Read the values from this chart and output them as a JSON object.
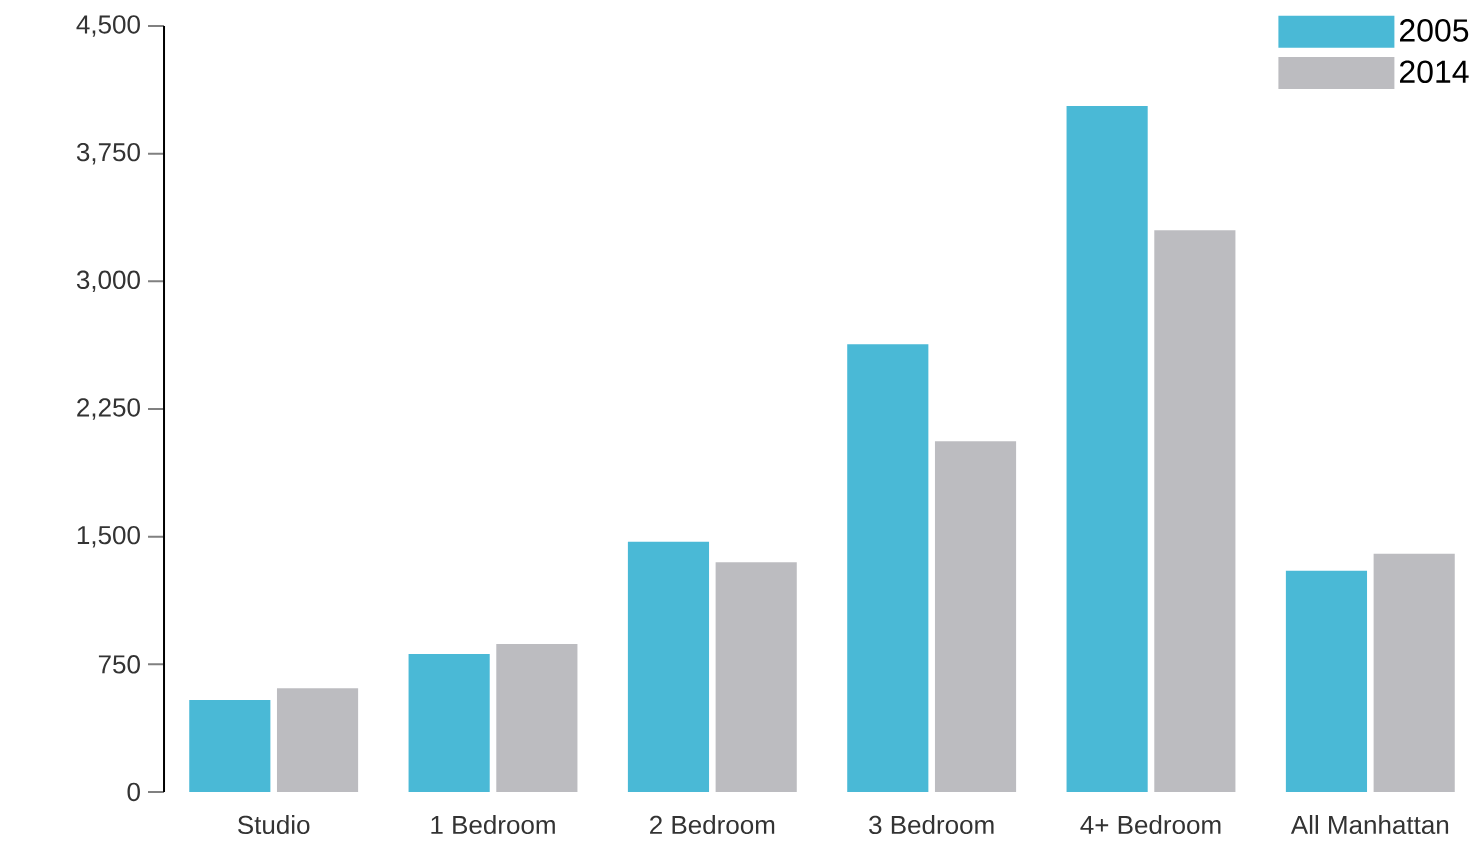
{
  "chart_data": {
    "type": "bar",
    "categories": [
      "Studio",
      "1 Bedroom",
      "2 Bedroom",
      "3 Bedroom",
      "4+ Bedroom",
      "All Manhattan"
    ],
    "series": [
      {
        "name": "2005",
        "color": "#4ab9d6",
        "values": [
          540,
          810,
          1470,
          2630,
          4030,
          1300
        ]
      },
      {
        "name": "2014",
        "color": "#bcbcc0",
        "values": [
          610,
          870,
          1350,
          2060,
          3300,
          1400
        ]
      }
    ],
    "ylim": [
      0,
      4500
    ],
    "yticks": [
      0,
      750,
      {
        "value": 1500,
        "label": "1,500"
      },
      {
        "value": 2250,
        "label": "2,250"
      },
      {
        "value": 3000,
        "label": "3,000"
      },
      {
        "value": 3750,
        "label": "3,750"
      },
      {
        "value": 4500,
        "label": "4,500"
      }
    ],
    "legend": "top right"
  }
}
